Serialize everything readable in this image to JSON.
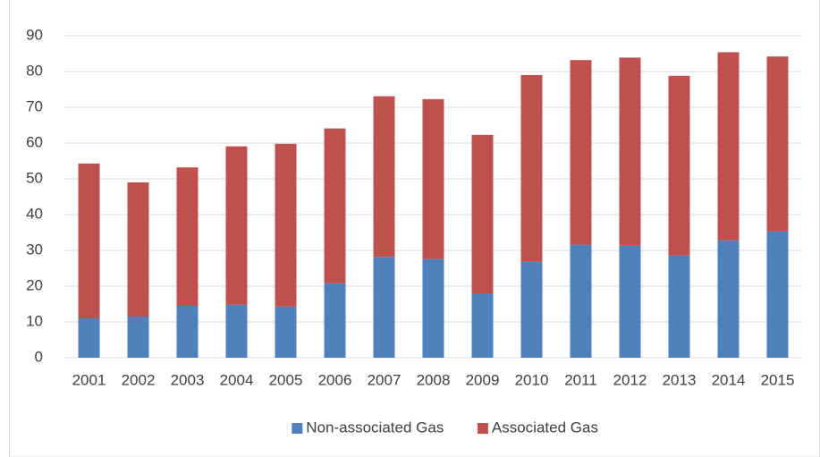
{
  "chart_data": {
    "type": "stacked_bar",
    "categories": [
      "2001",
      "2002",
      "2003",
      "2004",
      "2005",
      "2006",
      "2007",
      "2008",
      "2009",
      "2010",
      "2011",
      "2012",
      "2013",
      "2014",
      "2015"
    ],
    "series": [
      {
        "name": "Non-associated Gas",
        "color": "#4f81bd",
        "values": [
          11.0,
          11.5,
          14.5,
          14.8,
          14.3,
          20.8,
          28.2,
          27.6,
          18.0,
          26.8,
          31.6,
          31.3,
          28.6,
          32.8,
          35.3
        ]
      },
      {
        "name": "Associated Gas",
        "color": "#c0504d",
        "values": [
          43.3,
          37.5,
          38.7,
          44.3,
          45.5,
          43.3,
          44.9,
          44.7,
          44.3,
          52.2,
          51.6,
          52.6,
          50.2,
          52.6,
          48.9
        ]
      }
    ],
    "ylim": [
      0,
      90
    ],
    "yticks": [
      0,
      10,
      20,
      30,
      40,
      50,
      60,
      70,
      80,
      90
    ],
    "grid": true,
    "legend": "bottom"
  }
}
